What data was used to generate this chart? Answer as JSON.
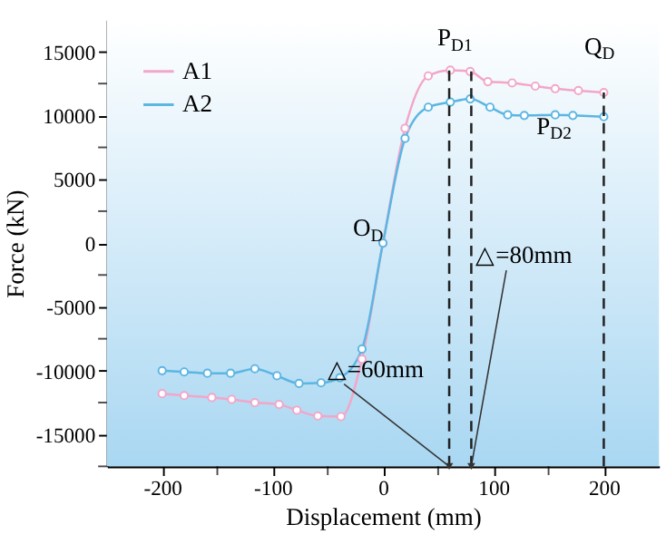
{
  "chart_data": {
    "type": "line",
    "xlabel": "Displacement (mm)",
    "ylabel": "Force (kN)",
    "xlim": [
      -250,
      250
    ],
    "ylim": [
      -17500,
      17500
    ],
    "xticks": [
      -200,
      {
        "value": -150,
        "label": null
      },
      -100,
      {
        "value": -50,
        "label": null
      },
      0,
      {
        "value": 50,
        "label": null
      },
      100,
      {
        "value": 150,
        "label": null
      },
      200
    ],
    "yticks": [
      {
        "value": -17500,
        "label": null
      },
      -15000,
      {
        "value": -12500,
        "label": null
      },
      -10000,
      {
        "value": -7500,
        "label": null
      },
      -5000,
      {
        "value": -2500,
        "label": null
      },
      0,
      {
        "value": 2500,
        "label": null
      },
      5000,
      {
        "value": 7500,
        "label": null
      },
      10000,
      {
        "value": 12500,
        "label": null
      },
      15000
    ],
    "grid": false,
    "legend": "top left",
    "marker": "circle",
    "line_style": "solid",
    "series": [
      {
        "name": "A1",
        "color": "#f2a6c9",
        "x": [
          -200,
          -180,
          -155,
          -137,
          -116,
          -94,
          -78,
          -59,
          -38,
          -19,
          0,
          20,
          41,
          61,
          79,
          95,
          117,
          138,
          156,
          177,
          200
        ],
        "values": [
          -11800,
          -11950,
          -12100,
          -12250,
          -12500,
          -12650,
          -13100,
          -13550,
          -13600,
          -9100,
          0,
          9000,
          13100,
          13550,
          13450,
          12650,
          12550,
          12300,
          12100,
          11950,
          11800
        ]
      },
      {
        "name": "A2",
        "color": "#5bb6e2",
        "x": [
          -200,
          -180,
          -159,
          -138,
          -116,
          -96,
          -76,
          -56,
          -39,
          -19,
          0,
          20,
          41,
          61,
          79,
          97,
          113,
          128,
          156,
          172,
          200
        ],
        "values": [
          -10000,
          -10100,
          -10200,
          -10200,
          -9850,
          -10400,
          -11000,
          -10950,
          -10550,
          -8300,
          0,
          8200,
          10650,
          11050,
          11300,
          10650,
          10050,
          10000,
          10050,
          10000,
          9900
        ]
      }
    ],
    "ref_lines": [
      {
        "axis": "x",
        "value": 60,
        "color": "#222222",
        "line_style": "dashed"
      },
      {
        "axis": "x",
        "value": 80,
        "color": "#222222",
        "line_style": "dashed"
      },
      {
        "axis": "x",
        "value": 200,
        "color": "#222222",
        "line_style": "dashed"
      }
    ],
    "annotations": [
      {
        "text": "P$_{D1}$",
        "x": 60,
        "y": 13550
      },
      {
        "text": "P$_{D2}$",
        "x": 80,
        "y": 11300
      },
      {
        "text": "Q$_{D}$",
        "x": 200,
        "y": 11800
      },
      {
        "text": "O$_{D}$",
        "x": 0,
        "y": 0
      },
      {
        "text": "△=60mm",
        "x": 60,
        "y": -17500
      },
      {
        "text": "△=80mm",
        "x": 80,
        "y": -17500
      }
    ]
  }
}
